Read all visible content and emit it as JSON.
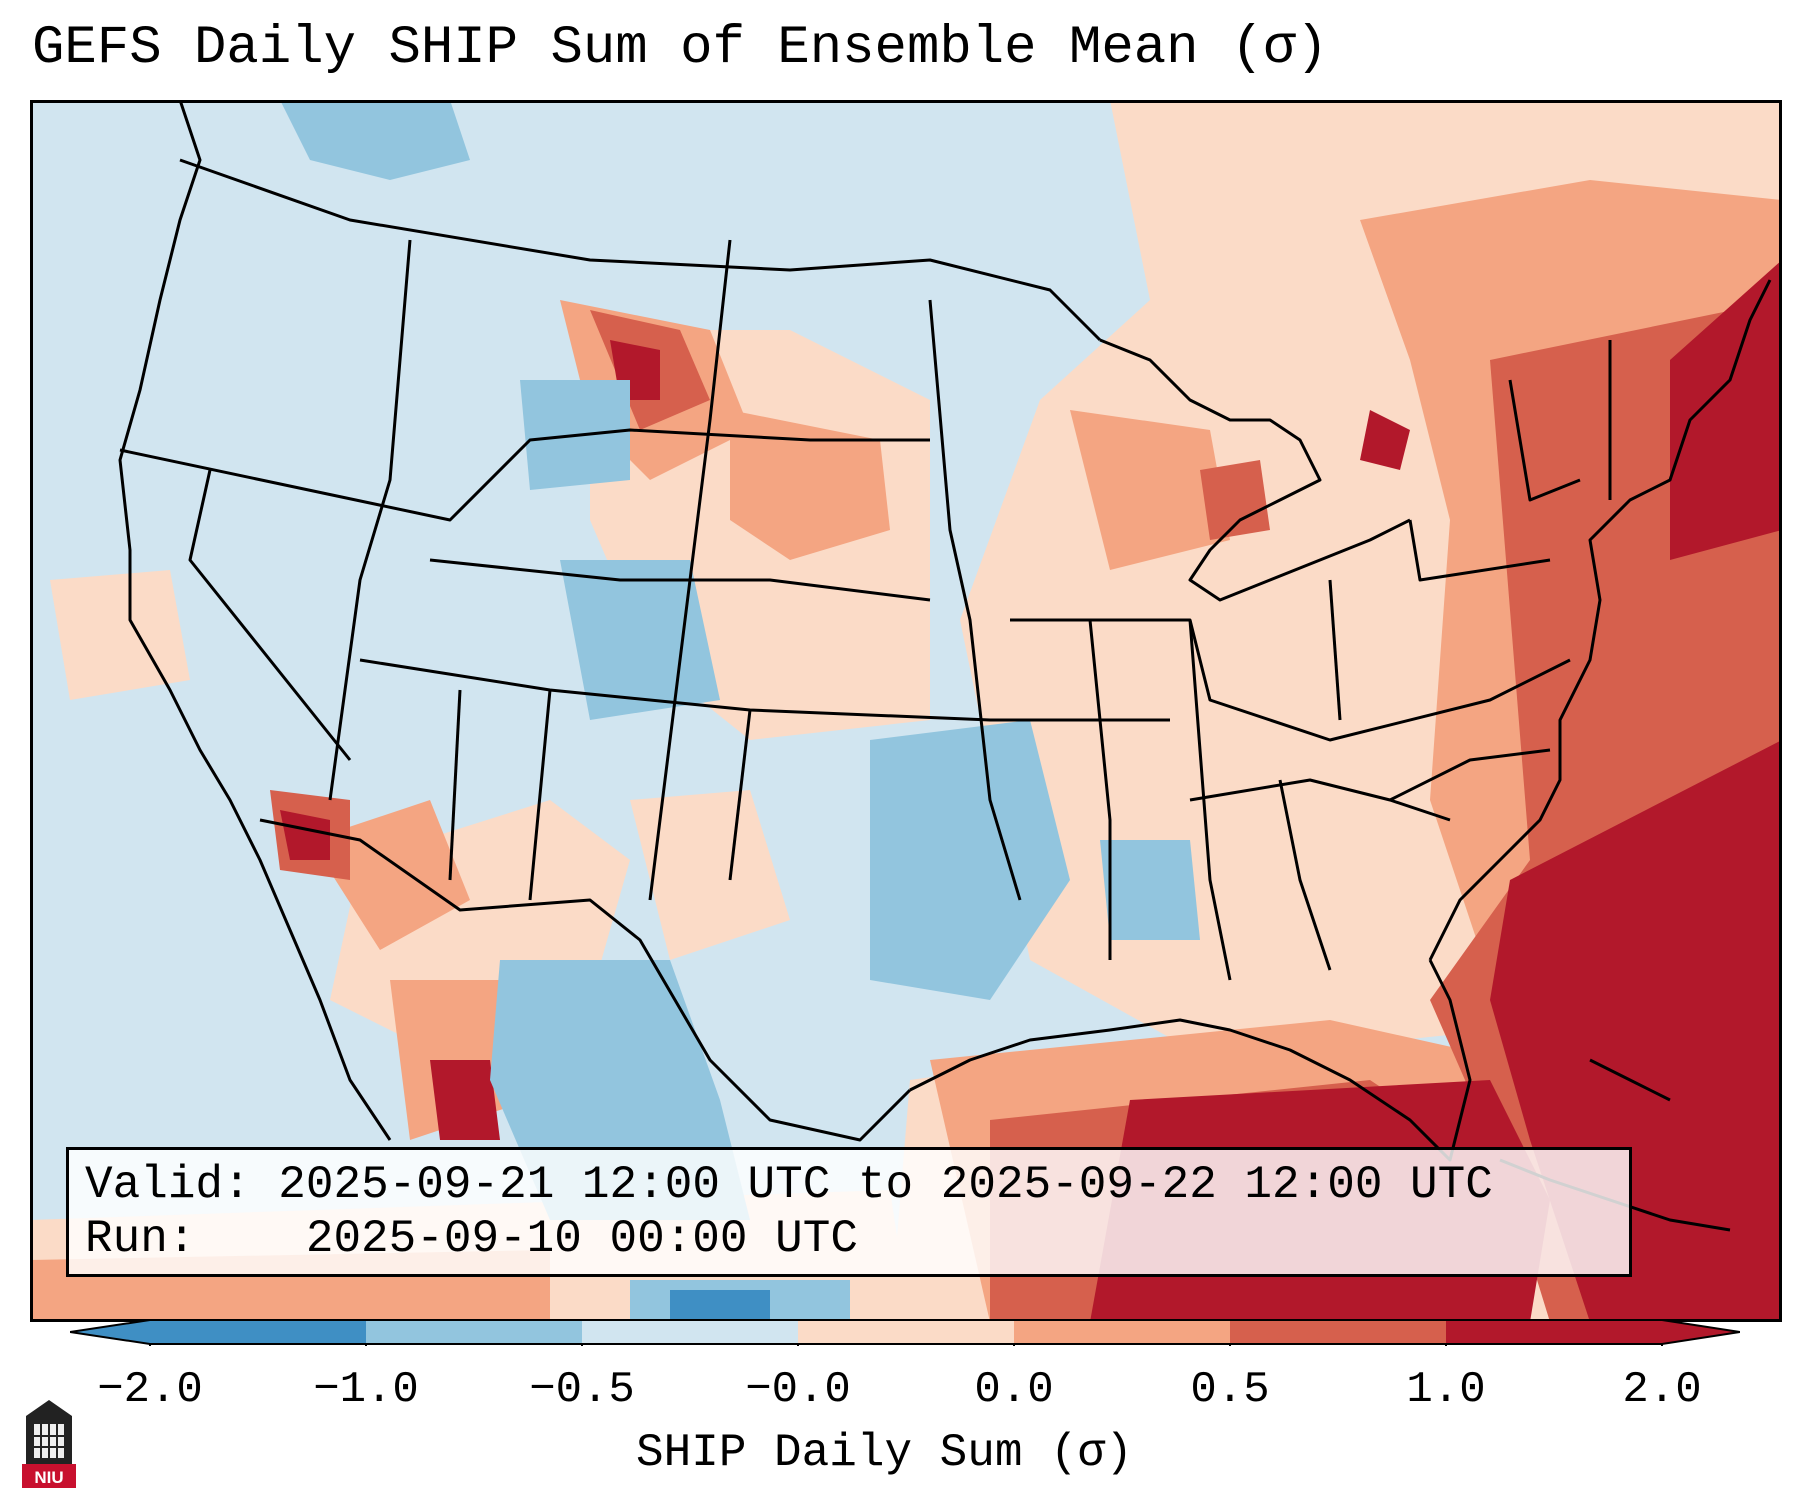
{
  "title": "GEFS Daily SHIP Sum of Ensemble Mean (σ)",
  "info": {
    "valid_label": "Valid:",
    "valid_value": "2025-09-21 12:00 UTC to 2025-09-22 12:00 UTC",
    "run_label": "Run:",
    "run_value": "2025-09-10 00:00 UTC"
  },
  "colorbar": {
    "label": "SHIP Daily Sum (σ)",
    "ticks": [
      "−2.0",
      "−1.0",
      "−0.5",
      "−0.0",
      "0.0",
      "0.5",
      "1.0",
      "2.0"
    ],
    "colors": [
      "#3f8fc4",
      "#92c5de",
      "#d1e5f0",
      "#fbdbc7",
      "#f4a582",
      "#d6604d",
      "#b2182b"
    ]
  },
  "logo": {
    "text": "NIU"
  }
}
